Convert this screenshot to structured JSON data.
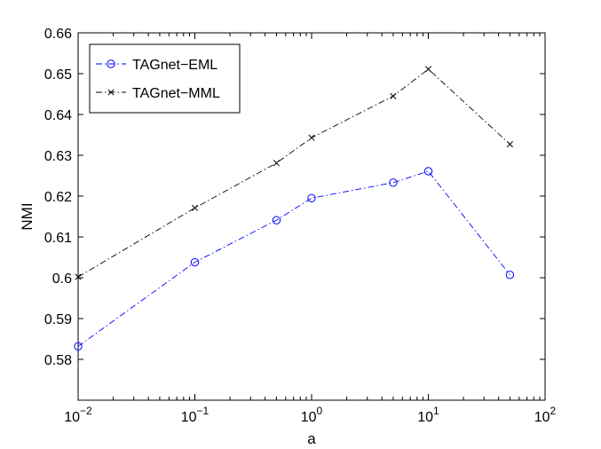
{
  "chart_data": {
    "type": "line",
    "xscale": "log",
    "x": [
      0.01,
      0.1,
      0.5,
      1,
      5,
      10,
      50
    ],
    "series": [
      {
        "name": "TAGnet−EML",
        "values": [
          0.5832,
          0.6038,
          0.6141,
          0.6195,
          0.6233,
          0.6261,
          0.6007
        ],
        "color": "#0000ff",
        "marker": "circle",
        "linestyle": "dash-dot"
      },
      {
        "name": "TAGnet−MML",
        "values": [
          0.6002,
          0.6171,
          0.6281,
          0.6343,
          0.6445,
          0.6511,
          0.6327
        ],
        "color": "#000000",
        "marker": "x",
        "linestyle": "dash-dot"
      }
    ],
    "xlabel": "a",
    "ylabel": "NMI",
    "xlim": [
      0.01,
      100
    ],
    "ylim": [
      0.57,
      0.66
    ],
    "xticks": [
      {
        "value": 0.01,
        "base": "10",
        "exp": "−2"
      },
      {
        "value": 0.1,
        "base": "10",
        "exp": "−1"
      },
      {
        "value": 1,
        "base": "10",
        "exp": "0"
      },
      {
        "value": 10,
        "base": "10",
        "exp": "1"
      },
      {
        "value": 100,
        "base": "10",
        "exp": "2"
      }
    ],
    "yticks": [
      {
        "value": 0.58,
        "label": "0.58"
      },
      {
        "value": 0.59,
        "label": "0.59"
      },
      {
        "value": 0.6,
        "label": "0.6"
      },
      {
        "value": 0.61,
        "label": "0.61"
      },
      {
        "value": 0.62,
        "label": "0.62"
      },
      {
        "value": 0.63,
        "label": "0.63"
      },
      {
        "value": 0.64,
        "label": "0.64"
      },
      {
        "value": 0.65,
        "label": "0.65"
      },
      {
        "value": 0.66,
        "label": "0.66"
      }
    ],
    "grid": false,
    "legend_position": "top-left"
  }
}
